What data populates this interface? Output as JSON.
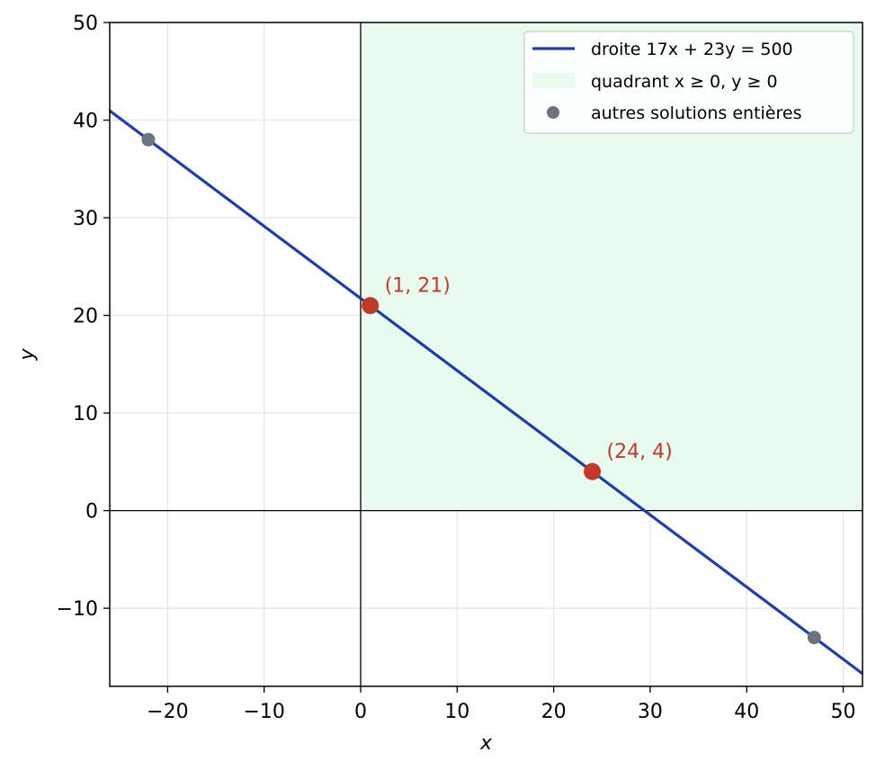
{
  "colors": {
    "line": "#1f3fa8",
    "quadrant_fill": "#e9fbef",
    "other_points": "#6b7280",
    "highlight_points": "#c0392b",
    "grid": "#e6e6e6",
    "axes": "#000000"
  },
  "chart_data": {
    "type": "line",
    "xlabel": "x",
    "ylabel": "y",
    "xlim": [
      -26,
      52
    ],
    "ylim": [
      -18,
      50
    ],
    "xticks": [
      -20,
      -10,
      0,
      10,
      20,
      30,
      40,
      50
    ],
    "yticks": [
      -10,
      0,
      10,
      20,
      30,
      40,
      50
    ],
    "xtick_labels": [
      "−20",
      "−10",
      "0",
      "10",
      "20",
      "30",
      "40",
      "50"
    ],
    "ytick_labels": [
      "−10",
      "0",
      "10",
      "20",
      "30",
      "40",
      "50"
    ],
    "grid": true,
    "legend_position": "top-right",
    "series": [
      {
        "name": "droite 17x + 23y = 500",
        "kind": "line",
        "equation": {
          "a": 17,
          "b": 23,
          "c": 500
        }
      },
      {
        "name": "quadrant x ≥ 0,  y ≥ 0",
        "kind": "region",
        "x_min": 0,
        "y_min": 0
      },
      {
        "name": "autres solutions entières",
        "kind": "scatter",
        "points": [
          {
            "x": -22,
            "y": 38
          },
          {
            "x": 47,
            "y": -13
          }
        ]
      }
    ],
    "highlighted_points": [
      {
        "x": 1,
        "y": 21,
        "label": "(1,  21)"
      },
      {
        "x": 24,
        "y": 4,
        "label": "(24,  4)"
      }
    ]
  }
}
